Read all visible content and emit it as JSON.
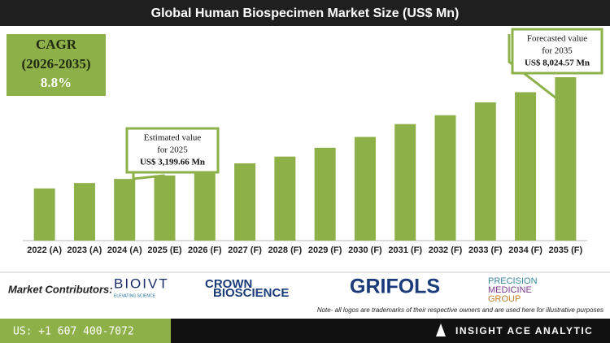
{
  "chart_data": {
    "type": "bar",
    "title": "Global Human Biospecimen Market Size (US$ Mn)",
    "categories": [
      "2022 (A)",
      "2023 (A)",
      "2024 (A)",
      "2025 (E)",
      "2026 (F)",
      "2027 (F)",
      "2028 (F)",
      "2029 (F)",
      "2030 (F)",
      "2031 (F)",
      "2032 (F)",
      "2033 (F)",
      "2034 (F)",
      "2035 (F)"
    ],
    "values": [
      2562,
      2828,
      3028,
      3199.66,
      3461,
      3794,
      4126,
      4559,
      5092,
      5724,
      6156,
      6789,
      7288,
      8024.57
    ],
    "color": "#8db049",
    "cagr": [
      "CAGR",
      "(2026-2035)",
      "8.8%"
    ],
    "annotations": [
      {
        "lines": [
          "Estimated value",
          "for 2025",
          "US$ 3,199.66 Mn"
        ],
        "index": 3
      },
      {
        "lines": [
          "Forecasted value",
          "for 2035",
          "US$ 8,024.57 Mn"
        ],
        "index": 13
      }
    ]
  },
  "contributors": {
    "label": "Market Contributors:",
    "logos": [
      "BIOIVT",
      "ELEVATING SCIENCE",
      "CROWN",
      "BIOSCIENCE",
      "GRIFOLS",
      "PRECISION",
      "MEDICINE",
      "GROUP"
    ],
    "note": "Note- all logos are trademarks of their respective owners and are used here for illustrative purposes"
  },
  "footer": {
    "phone": "US: +1 607 400-7072",
    "brand": "INSIGHT ACE ANALYTIC"
  }
}
